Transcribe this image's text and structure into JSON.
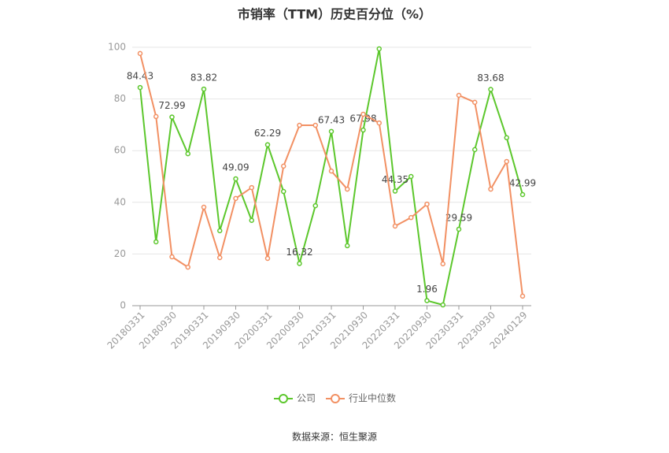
{
  "chart_data": {
    "type": "line",
    "title": "市销率（TTM）历史百分位（%）",
    "source": "数据来源：恒生聚源",
    "categories": [
      "20180331",
      null,
      "20180930",
      null,
      "20190331",
      null,
      "20190930",
      null,
      "20200331",
      null,
      "20200930",
      null,
      "20210331",
      null,
      "20210930",
      null,
      "20220331",
      null,
      "20220930",
      null,
      "20230331",
      null,
      "20230930",
      null,
      "20240129"
    ],
    "series": [
      {
        "name": "公司",
        "color": "#5cc72c",
        "values": [
          84.43,
          24.7,
          72.99,
          58.8,
          83.82,
          29,
          49.09,
          33,
          62.29,
          44.2,
          16.32,
          38.7,
          67.43,
          23.2,
          67.98,
          99.4,
          44.35,
          50,
          1.96,
          0.3,
          29.59,
          60.4,
          83.68,
          65,
          42.99
        ],
        "value_labels": [
          "84.43",
          null,
          "72.99",
          null,
          "83.82",
          null,
          "49.09",
          null,
          "62.29",
          null,
          "16.32",
          null,
          "67.43",
          null,
          "67.98",
          null,
          "44.35",
          null,
          "1.96",
          null,
          "29.59",
          null,
          "83.68",
          null,
          "42.99"
        ]
      },
      {
        "name": "行业中位数",
        "color": "#f29063",
        "values": [
          97.6,
          73.2,
          18.9,
          14.9,
          38.1,
          18.6,
          41.5,
          45.7,
          18.3,
          54,
          69.8,
          69.8,
          52.1,
          45.1,
          74.1,
          70.7,
          30.8,
          34.1,
          39.3,
          16.2,
          81.4,
          78.7,
          45.1,
          55.8,
          3.7
        ]
      }
    ],
    "ylim": [
      0,
      100
    ],
    "yticks": [
      0,
      20,
      40,
      60,
      80,
      100
    ],
    "grid": true
  }
}
